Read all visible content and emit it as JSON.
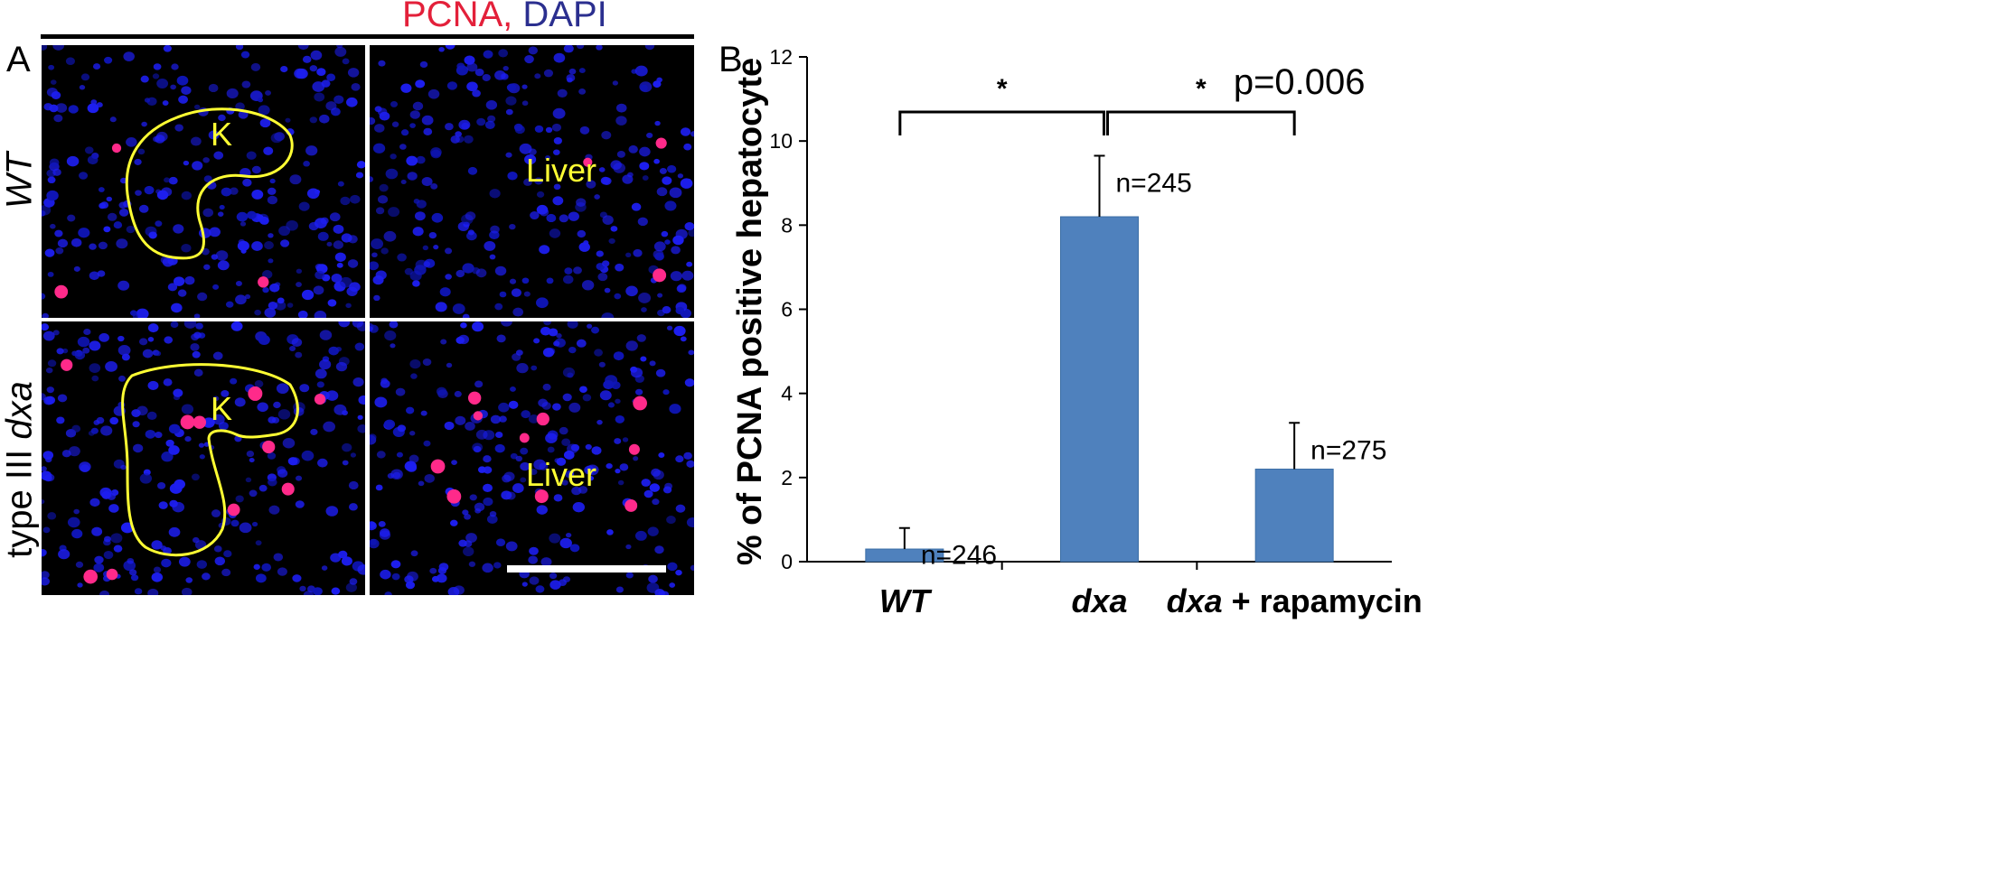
{
  "figure": {
    "header": {
      "stain_red": "PCNA,",
      "stain_blue": "DAPI"
    },
    "panel_a": {
      "label": "A",
      "row_labels": {
        "top": "WT",
        "bottom_prefix": "type III ",
        "bottom_italic": "dxa"
      },
      "tiles": [
        {
          "region_label": "K"
        },
        {
          "region_label": "Liver"
        },
        {
          "region_label": "K"
        },
        {
          "region_label": "Liver"
        }
      ]
    },
    "panel_b": {
      "label": "B"
    },
    "colors": {
      "pcna": "#e3203a",
      "dapi": "#2b2f8f",
      "bar": "#4f81bd",
      "outline": "#ffff33"
    }
  },
  "chart_data": {
    "type": "bar",
    "categories": [
      {
        "italic": "WT",
        "suffix": ""
      },
      {
        "italic": "dxa",
        "suffix": ""
      },
      {
        "italic": "dxa",
        "suffix": " + rapamycin"
      }
    ],
    "values": [
      0.3,
      8.2,
      2.2
    ],
    "error_plus": [
      0.5,
      1.45,
      1.1
    ],
    "bar_labels": [
      "n=246",
      "n=245",
      "n=275"
    ],
    "ylabel": "% of PCNA positive hepatocyte",
    "ylim": [
      0,
      12
    ],
    "yticks": [
      "0",
      "2",
      "4",
      "6",
      "8",
      "10",
      "12"
    ],
    "comparisons": [
      {
        "from": 0,
        "to": 1,
        "mark": "*",
        "note": ""
      },
      {
        "from": 1,
        "to": 2,
        "mark": "*",
        "note": "p=0.006"
      }
    ]
  }
}
